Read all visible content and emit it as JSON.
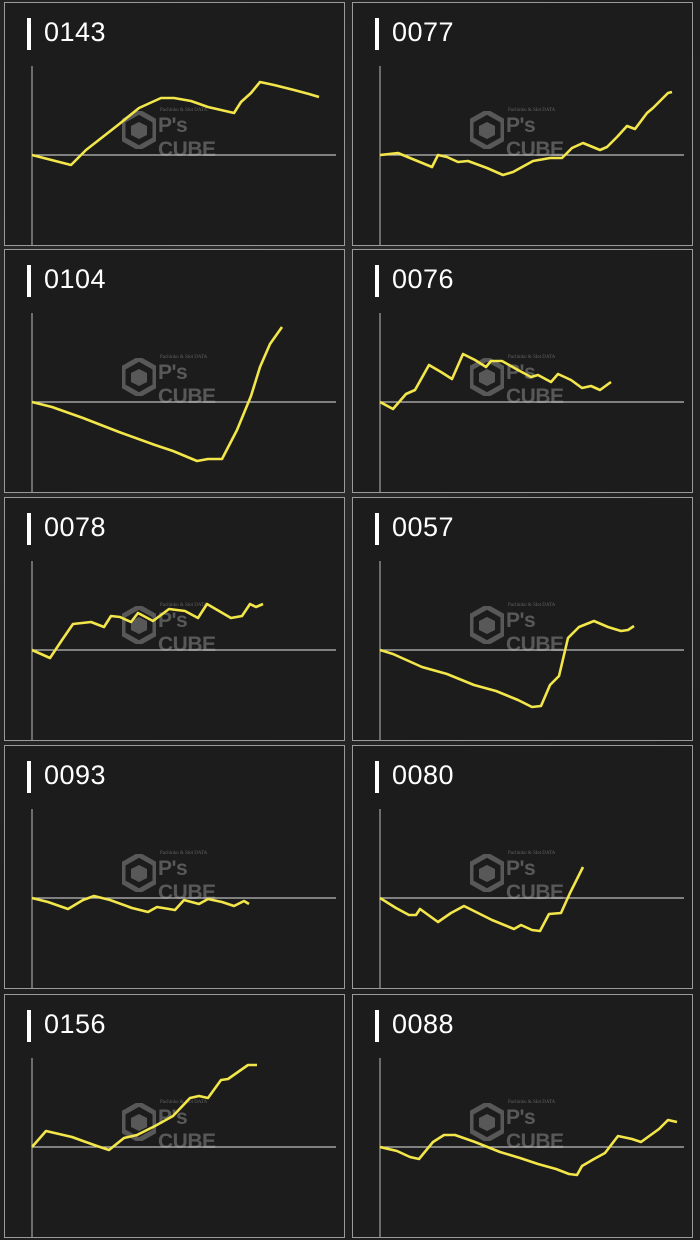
{
  "colors": {
    "line": "#f2e64a",
    "axis": "#bdbdbd",
    "card_bg": "#1c1c1c",
    "title": "#ffffff"
  },
  "watermark": {
    "top": "Pachinko & Slot DATA",
    "brand": "P's CUBE"
  },
  "chart_data": [
    {
      "type": "line",
      "title": "0143",
      "grid": false,
      "points": [
        [
          0,
          0
        ],
        [
          39,
          -10
        ],
        [
          54,
          5
        ],
        [
          86,
          30
        ],
        [
          107,
          47
        ],
        [
          129,
          57
        ],
        [
          142,
          57
        ],
        [
          159,
          54
        ],
        [
          176,
          48
        ],
        [
          202,
          42
        ],
        [
          209,
          53
        ],
        [
          219,
          62
        ],
        [
          228,
          73
        ],
        [
          242,
          70
        ],
        [
          262,
          65
        ],
        [
          277,
          61
        ],
        [
          287,
          58
        ]
      ]
    },
    {
      "type": "line",
      "title": "0077",
      "grid": false,
      "points": [
        [
          0,
          0
        ],
        [
          18,
          2
        ],
        [
          30,
          -3
        ],
        [
          52,
          -12
        ],
        [
          58,
          0
        ],
        [
          67,
          -2
        ],
        [
          78,
          -7
        ],
        [
          88,
          -6
        ],
        [
          107,
          -13
        ],
        [
          123,
          -20
        ],
        [
          133,
          -17
        ],
        [
          153,
          -6
        ],
        [
          170,
          -3
        ],
        [
          182,
          -3
        ],
        [
          192,
          7
        ],
        [
          203,
          12
        ],
        [
          220,
          5
        ],
        [
          227,
          8
        ],
        [
          237,
          18
        ],
        [
          247,
          29
        ],
        [
          255,
          26
        ],
        [
          267,
          42
        ],
        [
          273,
          47
        ],
        [
          288,
          62
        ],
        [
          292,
          63
        ]
      ]
    },
    {
      "type": "line",
      "title": "0104",
      "grid": false,
      "points": [
        [
          0,
          0
        ],
        [
          20,
          -5
        ],
        [
          51,
          -16
        ],
        [
          87,
          -30
        ],
        [
          123,
          -43
        ],
        [
          141,
          -49
        ],
        [
          165,
          -59
        ],
        [
          176,
          -57
        ],
        [
          190,
          -57
        ],
        [
          205,
          -28
        ],
        [
          219,
          6
        ],
        [
          228,
          35
        ],
        [
          238,
          58
        ],
        [
          250,
          75
        ]
      ]
    },
    {
      "type": "line",
      "title": "0076",
      "grid": false,
      "points": [
        [
          0,
          0
        ],
        [
          13,
          -7
        ],
        [
          26,
          8
        ],
        [
          35,
          12
        ],
        [
          49,
          37
        ],
        [
          61,
          30
        ],
        [
          72,
          23
        ],
        [
          83,
          48
        ],
        [
          95,
          42
        ],
        [
          106,
          35
        ],
        [
          111,
          41
        ],
        [
          122,
          41
        ],
        [
          138,
          32
        ],
        [
          151,
          25
        ],
        [
          158,
          27
        ],
        [
          171,
          20
        ],
        [
          178,
          28
        ],
        [
          191,
          22
        ],
        [
          202,
          14
        ],
        [
          211,
          16
        ],
        [
          220,
          12
        ],
        [
          231,
          20
        ]
      ]
    },
    {
      "type": "line",
      "title": "0078",
      "grid": false,
      "points": [
        [
          0,
          0
        ],
        [
          18,
          -8
        ],
        [
          30,
          10
        ],
        [
          41,
          26
        ],
        [
          59,
          28
        ],
        [
          72,
          23
        ],
        [
          79,
          34
        ],
        [
          88,
          33
        ],
        [
          99,
          28
        ],
        [
          106,
          37
        ],
        [
          121,
          29
        ],
        [
          137,
          41
        ],
        [
          153,
          39
        ],
        [
          166,
          32
        ],
        [
          175,
          46
        ],
        [
          199,
          32
        ],
        [
          210,
          34
        ],
        [
          218,
          46
        ],
        [
          224,
          43
        ],
        [
          231,
          46
        ]
      ]
    },
    {
      "type": "line",
      "title": "0057",
      "grid": false,
      "points": [
        [
          0,
          0
        ],
        [
          13,
          -4
        ],
        [
          42,
          -17
        ],
        [
          67,
          -24
        ],
        [
          94,
          -35
        ],
        [
          116,
          -41
        ],
        [
          138,
          -50
        ],
        [
          152,
          -57
        ],
        [
          161,
          -56
        ],
        [
          170,
          -35
        ],
        [
          179,
          -26
        ],
        [
          188,
          12
        ],
        [
          199,
          23
        ],
        [
          214,
          29
        ],
        [
          228,
          23
        ],
        [
          241,
          19
        ],
        [
          248,
          20
        ],
        [
          254,
          24
        ]
      ]
    },
    {
      "type": "line",
      "title": "0093",
      "grid": false,
      "points": [
        [
          0,
          0
        ],
        [
          16,
          -4
        ],
        [
          36,
          -11
        ],
        [
          51,
          -2
        ],
        [
          62,
          2
        ],
        [
          78,
          -2
        ],
        [
          100,
          -10
        ],
        [
          116,
          -14
        ],
        [
          125,
          -9
        ],
        [
          143,
          -12
        ],
        [
          152,
          -2
        ],
        [
          167,
          -6
        ],
        [
          176,
          -1
        ],
        [
          190,
          -4
        ],
        [
          202,
          -8
        ],
        [
          212,
          -3
        ],
        [
          217,
          -6
        ]
      ]
    },
    {
      "type": "line",
      "title": "0080",
      "grid": false,
      "points": [
        [
          0,
          0
        ],
        [
          16,
          -10
        ],
        [
          29,
          -17
        ],
        [
          36,
          -17
        ],
        [
          40,
          -11
        ],
        [
          58,
          -24
        ],
        [
          71,
          -15
        ],
        [
          84,
          -8
        ],
        [
          94,
          -13
        ],
        [
          112,
          -22
        ],
        [
          134,
          -31
        ],
        [
          141,
          -27
        ],
        [
          152,
          -32
        ],
        [
          160,
          -33
        ],
        [
          169,
          -16
        ],
        [
          181,
          -15
        ],
        [
          190,
          5
        ],
        [
          203,
          31
        ]
      ]
    },
    {
      "type": "line",
      "title": "0156",
      "grid": false,
      "points": [
        [
          0,
          0
        ],
        [
          14,
          16
        ],
        [
          27,
          13
        ],
        [
          40,
          10
        ],
        [
          51,
          6
        ],
        [
          65,
          1
        ],
        [
          77,
          -3
        ],
        [
          92,
          9
        ],
        [
          105,
          12
        ],
        [
          123,
          21
        ],
        [
          141,
          31
        ],
        [
          158,
          49
        ],
        [
          167,
          51
        ],
        [
          176,
          49
        ],
        [
          189,
          67
        ],
        [
          196,
          68
        ],
        [
          216,
          82
        ],
        [
          225,
          82
        ]
      ]
    },
    {
      "type": "line",
      "title": "0088",
      "grid": false,
      "points": [
        [
          0,
          0
        ],
        [
          17,
          -4
        ],
        [
          30,
          -10
        ],
        [
          39,
          -12
        ],
        [
          53,
          5
        ],
        [
          64,
          12
        ],
        [
          75,
          12
        ],
        [
          95,
          5
        ],
        [
          120,
          -5
        ],
        [
          140,
          -11
        ],
        [
          158,
          -17
        ],
        [
          176,
          -22
        ],
        [
          189,
          -27
        ],
        [
          197,
          -28
        ],
        [
          202,
          -19
        ],
        [
          214,
          -12
        ],
        [
          225,
          -6
        ],
        [
          238,
          11
        ],
        [
          252,
          8
        ],
        [
          261,
          5
        ],
        [
          279,
          18
        ],
        [
          288,
          27
        ],
        [
          297,
          25
        ]
      ]
    }
  ]
}
